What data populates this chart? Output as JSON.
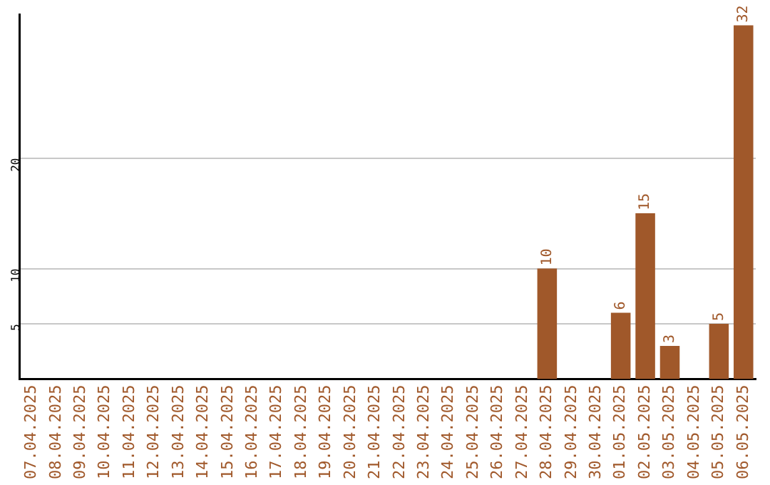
{
  "chart_data": {
    "type": "bar",
    "categories": [
      "07.04.2025",
      "08.04.2025",
      "09.04.2025",
      "10.04.2025",
      "11.04.2025",
      "12.04.2025",
      "13.04.2025",
      "14.04.2025",
      "15.04.2025",
      "16.04.2025",
      "17.04.2025",
      "18.04.2025",
      "19.04.2025",
      "20.04.2025",
      "21.04.2025",
      "22.04.2025",
      "23.04.2025",
      "24.04.2025",
      "25.04.2025",
      "26.04.2025",
      "27.04.2025",
      "28.04.2025",
      "29.04.2025",
      "30.04.2025",
      "01.05.2025",
      "02.05.2025",
      "03.05.2025",
      "04.05.2025",
      "05.05.2025",
      "06.05.2025"
    ],
    "values": [
      0,
      0,
      0,
      0,
      0,
      0,
      0,
      0,
      0,
      0,
      0,
      0,
      0,
      0,
      0,
      0,
      0,
      0,
      0,
      0,
      0,
      10,
      0,
      0,
      6,
      15,
      3,
      0,
      5,
      32
    ],
    "value_labels": [
      null,
      null,
      null,
      null,
      null,
      null,
      null,
      null,
      null,
      null,
      null,
      null,
      null,
      null,
      null,
      null,
      null,
      null,
      null,
      null,
      null,
      "10",
      null,
      null,
      "6",
      "15",
      "3",
      null,
      "5",
      "32"
    ],
    "color": "#a0582a",
    "ylim": [
      0,
      33
    ],
    "yticks": [
      5,
      10,
      20
    ],
    "grid": "y"
  }
}
